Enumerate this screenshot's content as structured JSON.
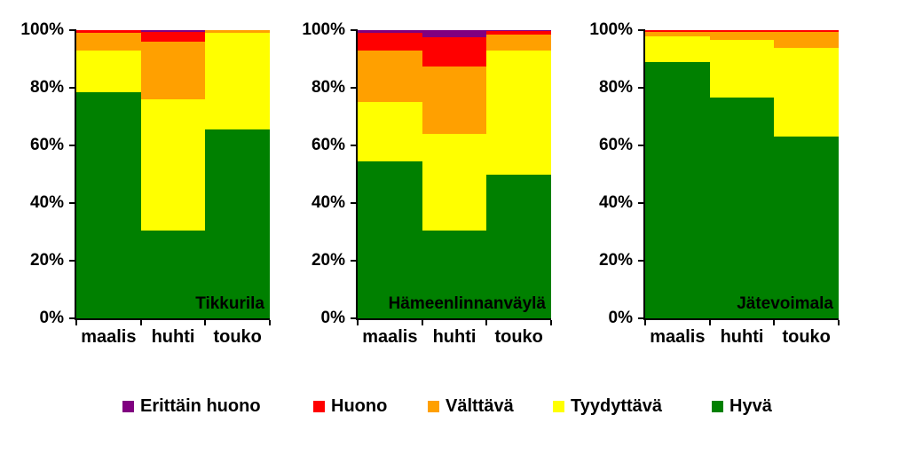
{
  "chart_data": {
    "type": "bar",
    "stacked": true,
    "percent_stacked": true,
    "categories": [
      "maalis",
      "huhti",
      "touko"
    ],
    "y_ticks": [
      "0%",
      "20%",
      "40%",
      "60%",
      "80%",
      "100%"
    ],
    "ylim": [
      0,
      100
    ],
    "grid": false,
    "legend_position": "bottom",
    "legend": [
      {
        "label": "Erittäin huono",
        "color": "#800080"
      },
      {
        "label": "Huono",
        "color": "#FF0000"
      },
      {
        "label": "Välttävä",
        "color": "#FFA000"
      },
      {
        "label": "Tyydyttävä",
        "color": "#FFFF00"
      },
      {
        "label": "Hyvä",
        "color": "#008000"
      }
    ],
    "charts": [
      {
        "title": "Tikkurila",
        "series": [
          {
            "name": "Hyvä",
            "color": "#008000",
            "values": [
              78.5,
              30.5,
              65.5
            ]
          },
          {
            "name": "Tyydyttävä",
            "color": "#FFFF00",
            "values": [
              14.5,
              45.5,
              33.5
            ]
          },
          {
            "name": "Välttävä",
            "color": "#FFA000",
            "values": [
              6.0,
              20.0,
              1.0
            ]
          },
          {
            "name": "Huono",
            "color": "#FF0000",
            "values": [
              1.0,
              3.5,
              0.0
            ]
          },
          {
            "name": "Erittäin huono",
            "color": "#800080",
            "values": [
              0.0,
              0.5,
              0.0
            ]
          }
        ]
      },
      {
        "title": "Hämeenlinnanväylä",
        "series": [
          {
            "name": "Hyvä",
            "color": "#008000",
            "values": [
              54.5,
              30.5,
              50.0
            ]
          },
          {
            "name": "Tyydyttävä",
            "color": "#FFFF00",
            "values": [
              20.5,
              33.5,
              43.0
            ]
          },
          {
            "name": "Välttävä",
            "color": "#FFA000",
            "values": [
              18.0,
              23.5,
              5.5
            ]
          },
          {
            "name": "Huono",
            "color": "#FF0000",
            "values": [
              6.0,
              10.0,
              1.2
            ]
          },
          {
            "name": "Erittäin huono",
            "color": "#800080",
            "values": [
              1.0,
              2.5,
              0.3
            ]
          }
        ]
      },
      {
        "title": "Jätevoimala",
        "series": [
          {
            "name": "Hyvä",
            "color": "#008000",
            "values": [
              89.0,
              76.5,
              63.0
            ]
          },
          {
            "name": "Tyydyttävä",
            "color": "#FFFF00",
            "values": [
              9.0,
              20.0,
              31.0
            ]
          },
          {
            "name": "Välttävä",
            "color": "#FFA000",
            "values": [
              1.5,
              3.0,
              5.5
            ]
          },
          {
            "name": "Huono",
            "color": "#FF0000",
            "values": [
              0.5,
              0.5,
              0.5
            ]
          },
          {
            "name": "Erittäin huono",
            "color": "#800080",
            "values": [
              0.0,
              0.0,
              0.0
            ]
          }
        ]
      }
    ]
  }
}
